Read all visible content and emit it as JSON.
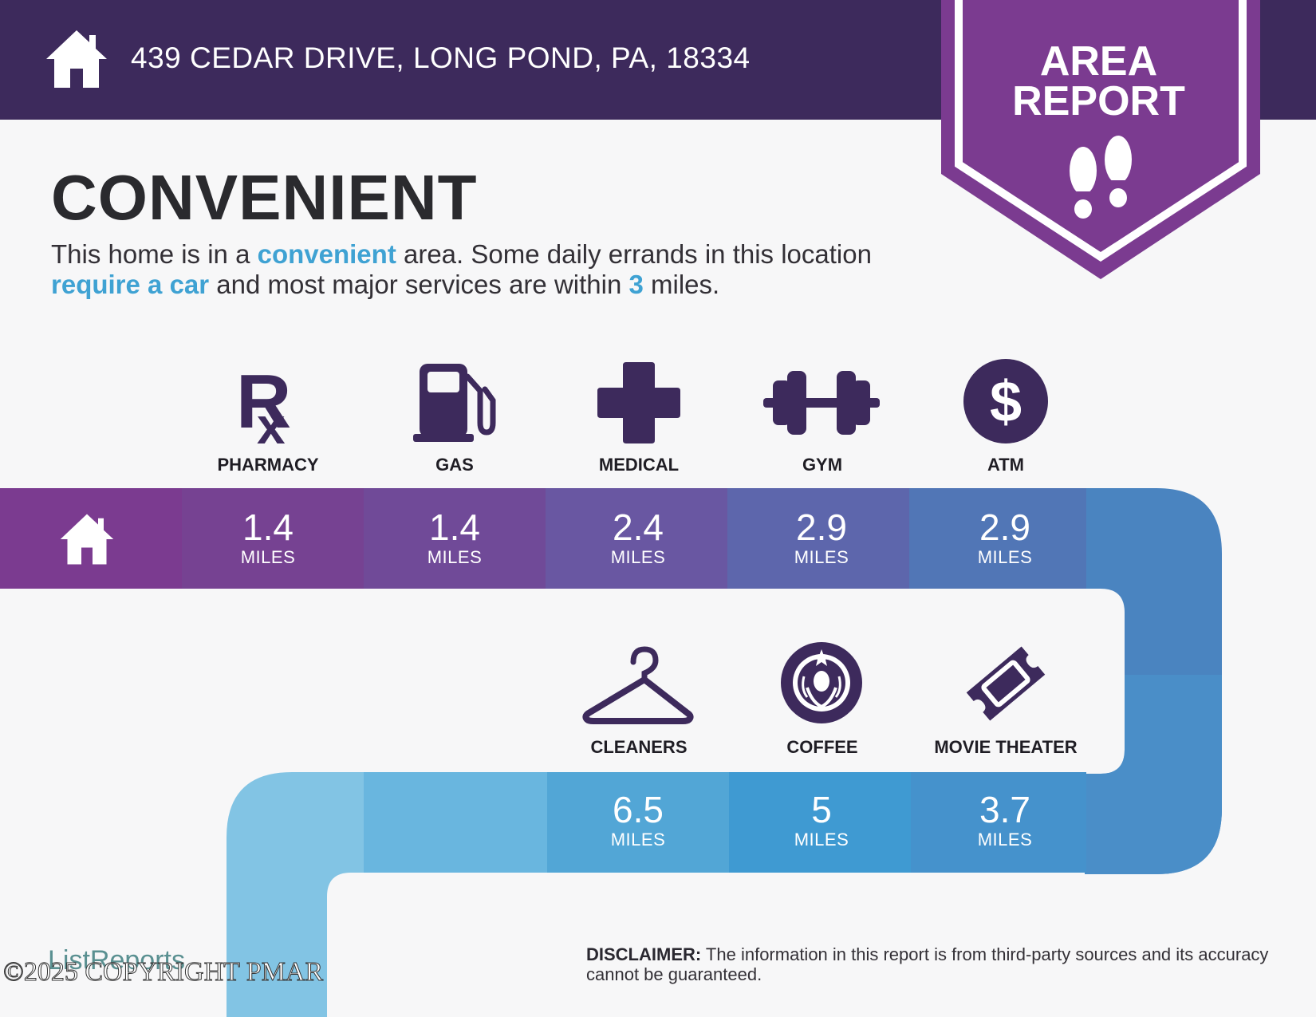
{
  "header": {
    "address": "439 CEDAR DRIVE, LONG POND, PA, 18334",
    "home_icon": "home-icon"
  },
  "badge": {
    "title": "AREA\nREPORT",
    "icon": "footprints-icon",
    "color": "#7b3b90"
  },
  "headline": "CONVENIENT",
  "intro": {
    "part1": "This home is in a ",
    "highlight1": "convenient",
    "part2": " area. Some daily errands in this location ",
    "highlight2": "require a car",
    "part3": " and most major services are within ",
    "highlight3": "3",
    "part4": " miles."
  },
  "row1": [
    {
      "label": "PHARMACY",
      "icon": "rx-icon",
      "distance": "1.4",
      "unit": "MILES"
    },
    {
      "label": "GAS",
      "icon": "gas-pump-icon",
      "distance": "1.4",
      "unit": "MILES"
    },
    {
      "label": "MEDICAL",
      "icon": "medical-cross-icon",
      "distance": "2.4",
      "unit": "MILES"
    },
    {
      "label": "GYM",
      "icon": "dumbbell-icon",
      "distance": "2.9",
      "unit": "MILES"
    },
    {
      "label": "ATM",
      "icon": "dollar-icon",
      "distance": "2.9",
      "unit": "MILES"
    }
  ],
  "row2": [
    {
      "label": "CLEANERS",
      "icon": "hanger-icon",
      "distance": "6.5",
      "unit": "MILES"
    },
    {
      "label": "COFFEE",
      "icon": "coffee-logo-icon",
      "distance": "5",
      "unit": "MILES"
    },
    {
      "label": "MOVIE THEATER",
      "icon": "ticket-icon",
      "distance": "3.7",
      "unit": "MILES"
    }
  ],
  "disclaimer": {
    "label": "DISCLAIMER:",
    "text": " The information in this report is from third-party sources and its accuracy cannot be guaranteed."
  },
  "brand": "ListReports",
  "copyright": "©2025 COPYRIGHT PMAR",
  "colors": {
    "header": "#3d2a5c",
    "icon": "#3d2a5c",
    "accent": "#3fa2d3"
  }
}
